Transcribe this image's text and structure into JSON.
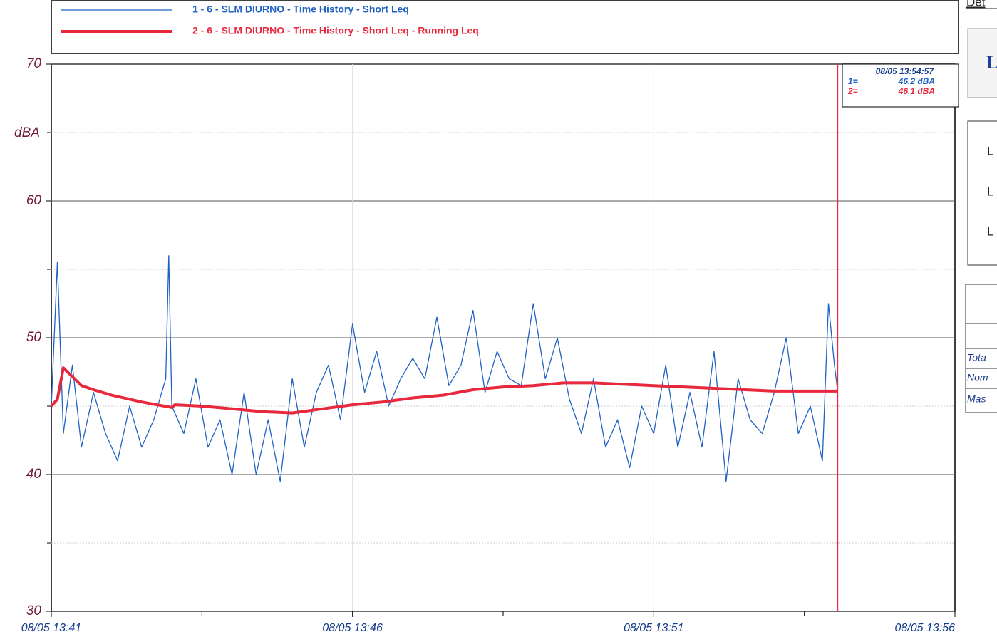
{
  "chart_data": {
    "type": "line",
    "y_label": "dBA",
    "xlim": [
      0,
      15
    ],
    "ylim": [
      30,
      70
    ],
    "xticks": [
      {
        "value": 0,
        "label": "08/05 13:41"
      },
      {
        "value": 5,
        "label": "08/05 13:46"
      },
      {
        "value": 10,
        "label": "08/05 13:51"
      },
      {
        "value": 15,
        "label": "08/05 13:56"
      }
    ],
    "xticks_minor": [
      2.5,
      7.5,
      12.5
    ],
    "yticks": [
      30,
      40,
      50,
      60,
      70
    ],
    "yticks_minor": [
      35,
      45,
      55,
      65
    ],
    "grid": true,
    "series": [
      {
        "name": "1 - 6 - SLM DIURNO - Time History - Short Leq",
        "color": "#1f62c4",
        "x": [
          0,
          0.1,
          0.2,
          0.35,
          0.5,
          0.7,
          0.9,
          1.1,
          1.3,
          1.5,
          1.7,
          1.9,
          1.95,
          2.0,
          2.2,
          2.4,
          2.6,
          2.8,
          3.0,
          3.2,
          3.4,
          3.6,
          3.8,
          4.0,
          4.2,
          4.4,
          4.6,
          4.8,
          5.0,
          5.2,
          5.4,
          5.6,
          5.8,
          6.0,
          6.2,
          6.4,
          6.6,
          6.8,
          7.0,
          7.2,
          7.4,
          7.6,
          7.8,
          8.0,
          8.2,
          8.4,
          8.6,
          8.8,
          9.0,
          9.2,
          9.4,
          9.6,
          9.8,
          10.0,
          10.2,
          10.4,
          10.6,
          10.8,
          11.0,
          11.2,
          11.4,
          11.6,
          11.8,
          12.0,
          12.2,
          12.4,
          12.6,
          12.8,
          12.9,
          13.0,
          13.05
        ],
        "values": [
          45,
          55.5,
          43,
          48,
          42,
          46,
          43,
          41,
          45,
          42,
          44,
          47,
          56,
          45,
          43,
          47,
          42,
          44,
          40,
          46,
          40,
          44,
          39.5,
          47,
          42,
          46,
          48,
          44,
          51,
          46,
          49,
          45,
          47,
          48.5,
          47,
          51.5,
          46.5,
          48,
          52,
          46,
          49,
          47,
          46.5,
          52.5,
          47,
          50,
          45.5,
          43,
          47,
          42,
          44,
          40.5,
          45,
          43,
          48,
          42,
          46,
          42,
          49,
          39.5,
          47,
          44,
          43,
          46,
          50,
          43,
          45,
          41,
          52.5,
          48,
          46.2
        ]
      },
      {
        "name": "2 - 6 - SLM DIURNO - Time History - Short Leq - Running Leq",
        "color": "#e8283c",
        "x": [
          0,
          0.1,
          0.2,
          0.5,
          0.7,
          1,
          1.5,
          2,
          2.05,
          2.5,
          3,
          3.5,
          4,
          4.5,
          5,
          5.5,
          6,
          6.5,
          7,
          7.5,
          8,
          8.5,
          9,
          10,
          11,
          12,
          13,
          13.05
        ],
        "values": [
          45,
          45.5,
          47.8,
          46.5,
          46.2,
          45.8,
          45.3,
          44.9,
          45.1,
          45,
          44.8,
          44.6,
          44.5,
          44.8,
          45.1,
          45.3,
          45.6,
          45.8,
          46.2,
          46.4,
          46.5,
          46.7,
          46.7,
          46.5,
          46.3,
          46.1,
          46.1,
          46.1
        ]
      }
    ],
    "cursor": {
      "x": 13.05,
      "time": "08/05 13:54:57",
      "rows": [
        {
          "key": "1=",
          "value": "46.2 dBA"
        },
        {
          "key": "2=",
          "value": "46.1 dBA"
        }
      ]
    }
  },
  "side_panel": {
    "header": "Det",
    "badge": "L",
    "rows": [
      "L",
      "L",
      "L"
    ],
    "table_rows": [
      "Tota",
      "Nom",
      "Mas"
    ]
  }
}
